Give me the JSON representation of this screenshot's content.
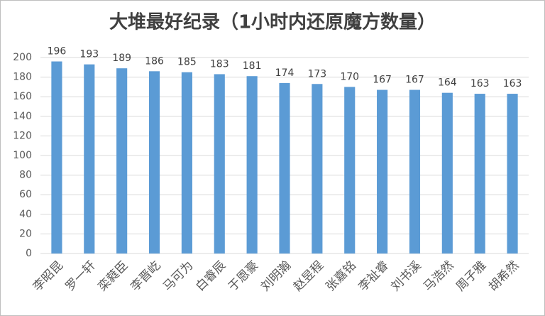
{
  "chart_data": {
    "type": "bar",
    "title": "大堆最好纪录（1小时内还原魔方数量）",
    "categories": [
      "李昭昆",
      "罗一轩",
      "栾蕤臣",
      "李晋屹",
      "马可为",
      "白睿辰",
      "于恩豪",
      "刘明瀚",
      "赵昱程",
      "张嘉铭",
      "李祉睿",
      "刘书溪",
      "马浩然",
      "周子雅",
      "胡希然"
    ],
    "values": [
      196,
      193,
      189,
      186,
      185,
      183,
      181,
      174,
      173,
      170,
      167,
      167,
      164,
      163,
      163
    ],
    "color": "#5b9bd5",
    "ylim": [
      0,
      200
    ],
    "yticks": [
      0,
      20,
      40,
      60,
      80,
      100,
      120,
      140,
      160,
      180,
      200
    ],
    "grid": true
  }
}
